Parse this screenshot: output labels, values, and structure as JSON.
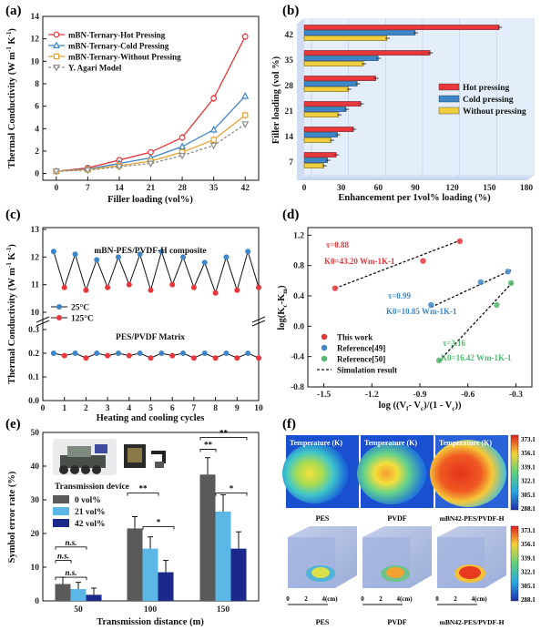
{
  "colors": {
    "red": "#e8363b",
    "blue": "#3d86c8",
    "orange": "#e7a233",
    "grey": "#8c8c8c",
    "green": "#4fb96d",
    "yellow": "#f0cf3c",
    "navy": "#1b2a8a",
    "lightblue": "#5bb7e5",
    "darkgrey": "#5a5a5a"
  },
  "chart_data": [
    {
      "panel": "(a)",
      "type": "line",
      "xlabel": "Filler loading (vol%)",
      "ylabel": "Thermal Conductivity (W m-1 K-1)",
      "x": [
        0,
        7,
        14,
        21,
        28,
        35,
        42
      ],
      "xlim": [
        -3,
        45
      ],
      "ylim": [
        -0.6,
        14
      ],
      "xticks": [
        "0",
        "7",
        "14",
        "21",
        "28",
        "35",
        "42"
      ],
      "yticks": [
        0,
        2,
        4,
        6,
        8,
        10,
        12,
        14
      ],
      "series": [
        {
          "name": "mBN-Ternary-Hot Pressing",
          "color": "#e8363b",
          "marker": "circle",
          "values": [
            0.2,
            0.5,
            1.2,
            1.9,
            3.2,
            6.7,
            12.2
          ]
        },
        {
          "name": "mBN-Ternary-Cold Pressing",
          "color": "#3d86c8",
          "marker": "triangle",
          "values": [
            0.2,
            0.4,
            0.9,
            1.4,
            2.4,
            3.9,
            6.9
          ]
        },
        {
          "name": "mBN-Ternary-Without Pressing",
          "color": "#e7a233",
          "marker": "square",
          "values": [
            0.2,
            0.35,
            0.7,
            1.1,
            1.9,
            3.0,
            5.2
          ]
        },
        {
          "name": "Y. Agari Model",
          "color": "#8c8c8c",
          "marker": "triangle-down",
          "dashed": true,
          "values": [
            0.2,
            0.3,
            0.6,
            0.9,
            1.6,
            2.5,
            4.4
          ]
        }
      ]
    },
    {
      "panel": "(b)",
      "type": "bar",
      "orientation": "horizontal",
      "xlabel": "Enhancement per 1vol% loading (%)",
      "ylabel": "Filler loading (vol %)",
      "categories": [
        "7",
        "14",
        "21",
        "28",
        "35",
        "42"
      ],
      "xlim": [
        0,
        180
      ],
      "xticks": [
        "0",
        "30",
        "60",
        "90",
        "120",
        "150",
        "180"
      ],
      "series": [
        {
          "name": "Hot pressing",
          "color": "#e8363b",
          "values": [
            26,
            40,
            46,
            58,
            102,
            158
          ]
        },
        {
          "name": "Cold pressing",
          "color": "#3d86c8",
          "values": [
            19,
            27,
            34,
            43,
            60,
            90
          ]
        },
        {
          "name": "Without pressing",
          "color": "#f0cf3c",
          "values": [
            16,
            22,
            28,
            36,
            48,
            67
          ]
        }
      ]
    },
    {
      "panel": "(c)",
      "type": "line",
      "xlabel": "Heating and cooling cycles",
      "ylabel": "Thermal Conductivity (W m-1 K-1)",
      "xticks": [
        "0",
        "1",
        "2",
        "3",
        "4",
        "5",
        "6",
        "7",
        "8",
        "9",
        "10"
      ],
      "upper_title": "mBN-PES/PVDF-H composite",
      "lower_title": "PES/PVDF Matrix",
      "upper_ylim": [
        10,
        13
      ],
      "upper_yticks": [
        10,
        11,
        12,
        13
      ],
      "lower_ylim": [
        0,
        0.3
      ],
      "lower_yticks": [
        0.0,
        0.1,
        0.2,
        0.3
      ],
      "legend": [
        "25°C",
        "125°C"
      ],
      "x": [
        0.5,
        1,
        1.5,
        2,
        2.5,
        3,
        3.5,
        4,
        4.5,
        5,
        5.5,
        6,
        6.5,
        7,
        7.5,
        8,
        8.5,
        9,
        9.5,
        10
      ],
      "upper_values": [
        12.2,
        10.9,
        12.1,
        10.8,
        11.9,
        10.9,
        12.0,
        11.0,
        12.1,
        10.8,
        12.2,
        11.0,
        12.0,
        10.9,
        11.8,
        10.7,
        12.0,
        10.8,
        12.2,
        10.9
      ],
      "lower_values": [
        0.2,
        0.19,
        0.2,
        0.18,
        0.2,
        0.19,
        0.2,
        0.19,
        0.2,
        0.18,
        0.2,
        0.19,
        0.2,
        0.18,
        0.2,
        0.18,
        0.2,
        0.18,
        0.2,
        0.18
      ]
    },
    {
      "panel": "(d)",
      "type": "scatter",
      "xlabel": "log ((Vf - Vc)/(1 - Vc))",
      "ylabel": "log(Kc-Km)",
      "xlim": [
        -1.6,
        -0.2
      ],
      "ylim": [
        -0.8,
        1.3
      ],
      "xticks": [
        "-1.5",
        "-1.2",
        "-0.9",
        "-0.6",
        "-0.3"
      ],
      "yticks": [
        "-0.8",
        "-0.4",
        "0.0",
        "0.4",
        "0.8",
        "1.2"
      ],
      "series": [
        {
          "name": "This work",
          "color": "#e8363b",
          "x": [
            -1.43,
            -0.88,
            -0.65
          ],
          "y": [
            0.5,
            0.86,
            1.12
          ],
          "fit": {
            "x": [
              -1.43,
              -0.65
            ],
            "y": [
              0.5,
              1.13
            ]
          },
          "tau": "τ=0.88",
          "k0": "K0=43.20 Wm-1K-1"
        },
        {
          "name": "Reference[49]",
          "color": "#3d86c8",
          "x": [
            -0.83,
            -0.52,
            -0.35
          ],
          "y": [
            0.28,
            0.58,
            0.72
          ],
          "fit": {
            "x": [
              -0.83,
              -0.33
            ],
            "y": [
              0.25,
              0.74
            ]
          },
          "tau": "τ=0.99",
          "k0": "K0=10.85 Wm-1K-1"
        },
        {
          "name": "Reference[50]",
          "color": "#4fb96d",
          "x": [
            -0.78,
            -0.42,
            -0.33
          ],
          "y": [
            -0.45,
            0.28,
            0.57
          ],
          "fit": {
            "x": [
              -0.78,
              -0.32
            ],
            "y": [
              -0.46,
              0.58
            ]
          },
          "tau": "τ=2.16",
          "k0": "K0=16.42 Wm-1K-1"
        },
        {
          "name": "Simulation result",
          "color": "#111111",
          "dashed": true
        }
      ]
    },
    {
      "panel": "(e)",
      "type": "bar",
      "xlabel": "Transmission distance (m)",
      "ylabel": "Symbol error rate (%)",
      "categories": [
        "50",
        "100",
        "150"
      ],
      "ylim": [
        0,
        50
      ],
      "yticks": [
        "0",
        "10",
        "20",
        "30",
        "40",
        "50"
      ],
      "inset_label": "Transmission device",
      "series": [
        {
          "name": "0 vol%",
          "color": "#5a5a5a",
          "values": [
            5,
            21.5,
            37.5
          ]
        },
        {
          "name": "21 vol%",
          "color": "#5bb7e5",
          "values": [
            3.5,
            15.5,
            26.5
          ]
        },
        {
          "name": "42 vol%",
          "color": "#1b2a8a",
          "values": [
            1.8,
            8.5,
            15.5
          ]
        }
      ],
      "annotations": [
        "n.s.",
        "n.s.",
        "n.s.",
        "**",
        "*",
        "**",
        "**",
        "*"
      ]
    }
  ],
  "panel_f": {
    "label": "(f)",
    "map_title": "Temperature (K)",
    "samples": [
      "PES",
      "PVDF",
      "mBN42-PES/PVDF-H"
    ],
    "colorbar": [
      "373.1",
      "356.1",
      "339.1",
      "322.1",
      "305.1",
      "288.1"
    ],
    "scale": [
      "0",
      "2",
      "4(cm)"
    ]
  }
}
